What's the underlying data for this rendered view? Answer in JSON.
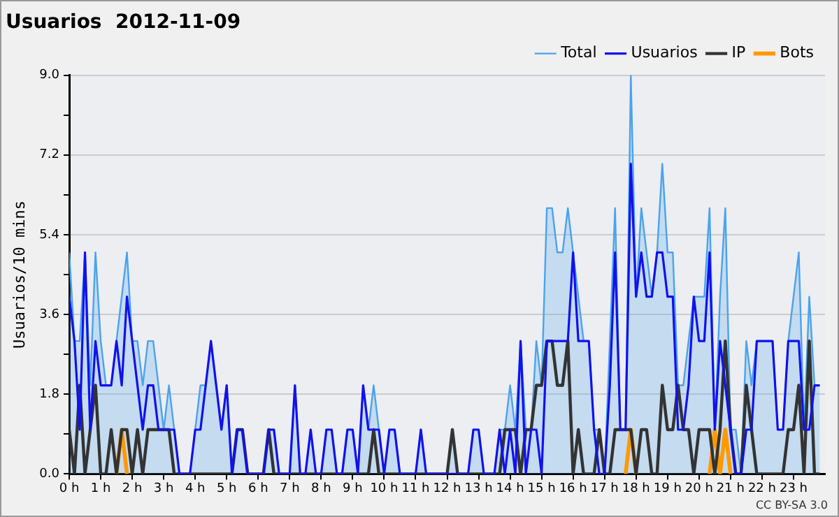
{
  "chart_data": {
    "type": "line",
    "title": "Usuarios  2012-11-09",
    "ylabel": "Usuarios/10 mins",
    "annotations": [
      "CC BY-SA 3.0"
    ],
    "x": [
      0,
      0.1667,
      0.3333,
      0.5,
      0.6667,
      0.8333,
      1,
      1.1667,
      1.3333,
      1.5,
      1.6667,
      1.8333,
      2,
      2.1667,
      2.3333,
      2.5,
      2.6667,
      2.8333,
      3,
      3.1667,
      3.3333,
      3.5,
      3.6667,
      3.8333,
      4,
      4.1667,
      4.3333,
      4.5,
      4.6667,
      4.8333,
      5,
      5.1667,
      5.3333,
      5.5,
      5.6667,
      5.8333,
      6,
      6.1667,
      6.3333,
      6.5,
      6.6667,
      6.8333,
      7,
      7.1667,
      7.3333,
      7.5,
      7.6667,
      7.8333,
      8,
      8.1667,
      8.3333,
      8.5,
      8.6667,
      8.8333,
      9,
      9.1667,
      9.3333,
      9.5,
      9.6667,
      9.8333,
      10,
      10.1667,
      10.3333,
      10.5,
      10.6667,
      10.8333,
      11,
      11.1667,
      11.3333,
      11.5,
      11.6667,
      11.8333,
      12,
      12.1667,
      12.3333,
      12.5,
      12.6667,
      12.8333,
      13,
      13.1667,
      13.3333,
      13.5,
      13.6667,
      13.8333,
      14,
      14.1667,
      14.3333,
      14.5,
      14.6667,
      14.8333,
      15,
      15.1667,
      15.3333,
      15.5,
      15.6667,
      15.8333,
      16,
      16.1667,
      16.3333,
      16.5,
      16.6667,
      16.8333,
      17,
      17.1667,
      17.3333,
      17.5,
      17.6667,
      17.8333,
      18,
      18.1667,
      18.3333,
      18.5,
      18.6667,
      18.8333,
      19,
      19.1667,
      19.3333,
      19.5,
      19.6667,
      19.8333,
      20,
      20.1667,
      20.3333,
      20.5,
      20.6667,
      20.8333,
      21,
      21.1667,
      21.3333,
      21.5,
      21.6667,
      21.8333,
      22,
      22.1667,
      22.3333,
      22.5,
      22.6667,
      22.8333,
      23,
      23.1667,
      23.3333,
      23.5,
      23.6667,
      23.8333
    ],
    "series": [
      {
        "name": "Total",
        "type": "area",
        "color": "#4aa3ee",
        "values": [
          5,
          3,
          3,
          5,
          2,
          5,
          3,
          2,
          2,
          3,
          4,
          5,
          3,
          3,
          2,
          3,
          3,
          2,
          1,
          2,
          1,
          0,
          0,
          0,
          1,
          2,
          2,
          3,
          2,
          1,
          2,
          0,
          1,
          1,
          0,
          0,
          0,
          0,
          1,
          1,
          0,
          0,
          0,
          2,
          0,
          0,
          1,
          0,
          0,
          1,
          1,
          0,
          0,
          1,
          1,
          0,
          2,
          1,
          2,
          1,
          0,
          1,
          1,
          0,
          0,
          0,
          0,
          1,
          0,
          0,
          0,
          0,
          0,
          1,
          0,
          0,
          0,
          1,
          1,
          0,
          0,
          0,
          1,
          1,
          2,
          1,
          3,
          1,
          1,
          3,
          2,
          6,
          6,
          5,
          5,
          6,
          5,
          4,
          3,
          3,
          1,
          1,
          0,
          3,
          6,
          1,
          1,
          9,
          4,
          6,
          5,
          4,
          5,
          7,
          5,
          5,
          2,
          2,
          3,
          4,
          4,
          4,
          6,
          1,
          4,
          6,
          1,
          1,
          0,
          3,
          2,
          3,
          3,
          3,
          3,
          1,
          1,
          3,
          4,
          5,
          1,
          4,
          2,
          2
        ]
      },
      {
        "name": "Usuarios",
        "type": "line",
        "color": "#1111ee",
        "values": [
          4,
          3,
          1,
          5,
          1,
          3,
          2,
          2,
          2,
          3,
          2,
          4,
          3,
          2,
          1,
          2,
          2,
          1,
          1,
          1,
          1,
          0,
          0,
          0,
          1,
          1,
          2,
          3,
          2,
          1,
          2,
          0,
          1,
          1,
          0,
          0,
          0,
          0,
          1,
          1,
          0,
          0,
          0,
          2,
          0,
          0,
          1,
          0,
          0,
          1,
          1,
          0,
          0,
          1,
          1,
          0,
          2,
          1,
          1,
          1,
          0,
          1,
          1,
          0,
          0,
          0,
          0,
          1,
          0,
          0,
          0,
          0,
          0,
          0,
          0,
          0,
          0,
          1,
          1,
          0,
          0,
          0,
          1,
          0,
          1,
          0,
          3,
          0,
          1,
          1,
          0,
          3,
          3,
          3,
          3,
          3,
          5,
          3,
          3,
          3,
          1,
          0,
          0,
          2,
          5,
          1,
          1,
          7,
          4,
          5,
          4,
          4,
          5,
          5,
          4,
          4,
          1,
          1,
          2,
          4,
          3,
          3,
          5,
          1,
          3,
          2,
          1,
          0,
          0,
          1,
          1,
          3,
          3,
          3,
          3,
          1,
          1,
          3,
          3,
          3,
          1,
          1,
          2,
          2
        ]
      },
      {
        "name": "IP",
        "type": "line",
        "color": "#333333",
        "values": [
          1,
          0,
          2,
          0,
          1,
          2,
          0,
          0,
          1,
          0,
          1,
          1,
          0,
          1,
          0,
          1,
          1,
          1,
          1,
          1,
          0,
          0,
          0,
          0,
          0,
          0,
          0,
          0,
          0,
          0,
          0,
          0,
          1,
          1,
          0,
          0,
          0,
          0,
          1,
          0,
          0,
          0,
          0,
          0,
          0,
          0,
          0,
          0,
          0,
          0,
          0,
          0,
          0,
          0,
          0,
          0,
          0,
          0,
          1,
          0,
          0,
          0,
          0,
          0,
          0,
          0,
          0,
          0,
          0,
          0,
          0,
          0,
          0,
          1,
          0,
          0,
          0,
          0,
          0,
          0,
          0,
          0,
          0,
          1,
          1,
          1,
          0,
          1,
          1,
          2,
          2,
          3,
          3,
          2,
          2,
          3,
          0,
          1,
          0,
          0,
          0,
          1,
          0,
          0,
          1,
          1,
          1,
          1,
          0,
          1,
          1,
          0,
          0,
          2,
          1,
          1,
          2,
          1,
          1,
          0,
          1,
          1,
          1,
          0,
          1,
          3,
          1,
          0,
          0,
          2,
          1,
          0,
          0,
          0,
          0,
          0,
          0,
          1,
          1,
          2,
          0,
          3,
          0,
          0
        ]
      },
      {
        "name": "Bots",
        "type": "line",
        "color": "#ff9900",
        "values": [
          null,
          null,
          null,
          null,
          null,
          null,
          null,
          null,
          null,
          0,
          1,
          0,
          null,
          null,
          null,
          null,
          null,
          null,
          null,
          null,
          null,
          null,
          null,
          null,
          null,
          null,
          null,
          null,
          null,
          null,
          null,
          null,
          null,
          null,
          null,
          null,
          null,
          null,
          null,
          null,
          null,
          null,
          null,
          null,
          null,
          null,
          null,
          null,
          null,
          null,
          null,
          null,
          null,
          null,
          null,
          null,
          null,
          null,
          null,
          null,
          null,
          null,
          null,
          null,
          null,
          null,
          null,
          null,
          null,
          null,
          null,
          null,
          null,
          null,
          null,
          null,
          null,
          null,
          null,
          null,
          null,
          null,
          null,
          null,
          null,
          null,
          null,
          null,
          null,
          null,
          null,
          null,
          null,
          null,
          null,
          null,
          null,
          null,
          null,
          null,
          null,
          null,
          null,
          null,
          null,
          null,
          0,
          1,
          0,
          null,
          null,
          null,
          null,
          null,
          null,
          null,
          null,
          null,
          null,
          null,
          null,
          null,
          0,
          1,
          0,
          1,
          0,
          null,
          null,
          null,
          null,
          null,
          null,
          null,
          null,
          null,
          null,
          null,
          null,
          null,
          null,
          null,
          null,
          null
        ]
      }
    ],
    "xlim": [
      0,
      24
    ],
    "xticks": [
      {
        "value": 0,
        "label": "0 h"
      },
      {
        "value": 1,
        "label": "1 h"
      },
      {
        "value": 2,
        "label": "2 h"
      },
      {
        "value": 3,
        "label": "3 h"
      },
      {
        "value": 4,
        "label": "4 h"
      },
      {
        "value": 5,
        "label": "5 h"
      },
      {
        "value": 6,
        "label": "6 h"
      },
      {
        "value": 7,
        "label": "7 h"
      },
      {
        "value": 8,
        "label": "8 h"
      },
      {
        "value": 9,
        "label": "9 h"
      },
      {
        "value": 10,
        "label": "10 h"
      },
      {
        "value": 11,
        "label": "11 h"
      },
      {
        "value": 12,
        "label": "12 h"
      },
      {
        "value": 13,
        "label": "13 h"
      },
      {
        "value": 14,
        "label": "14 h"
      },
      {
        "value": 15,
        "label": "15 h"
      },
      {
        "value": 16,
        "label": "16 h"
      },
      {
        "value": 17,
        "label": "17 h"
      },
      {
        "value": 18,
        "label": "18 h"
      },
      {
        "value": 19,
        "label": "19 h"
      },
      {
        "value": 20,
        "label": "20 h"
      },
      {
        "value": 21,
        "label": "21 h"
      },
      {
        "value": 22,
        "label": "22 h"
      },
      {
        "value": 23,
        "label": "23 h"
      }
    ],
    "ylim": [
      0,
      9
    ],
    "yticks": [
      {
        "value": 0,
        "label": "0.0"
      },
      {
        "value": 0.9,
        "label": null
      },
      1.8,
      {
        "value": 2.7,
        "label": null
      },
      3.6,
      {
        "value": 4.5,
        "label": null
      },
      5.4,
      {
        "value": 6.3,
        "label": null
      },
      7.2,
      {
        "value": 8.1,
        "label": null
      },
      {
        "value": 9,
        "label": "9.0"
      }
    ],
    "grid": "y",
    "legend": "top right",
    "marker": "none",
    "line_style": "solid"
  }
}
